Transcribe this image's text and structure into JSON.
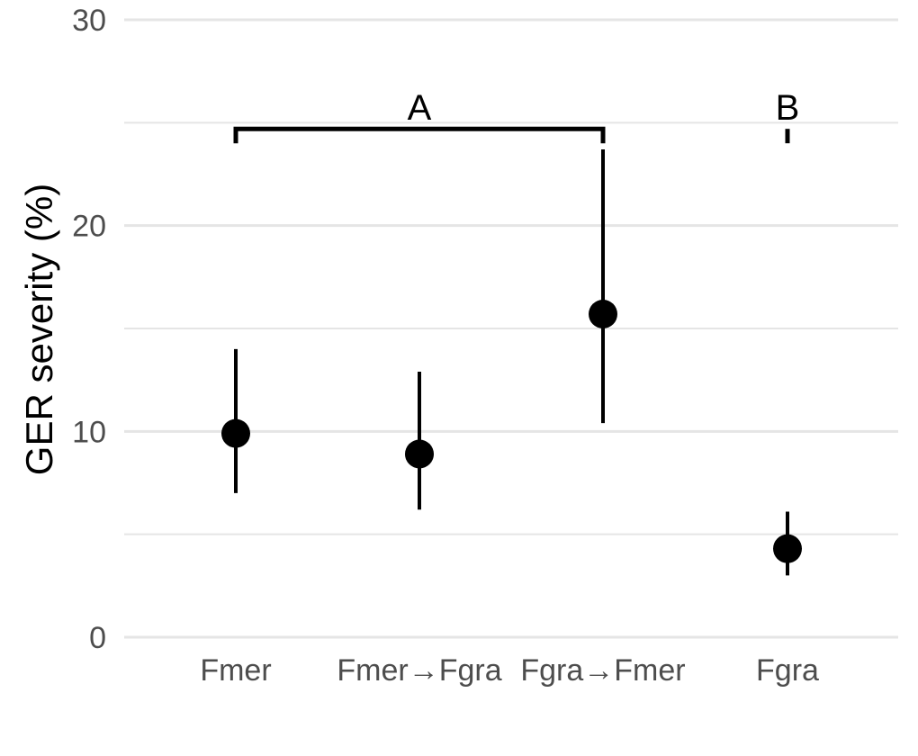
{
  "chart_data": {
    "type": "scatter",
    "title": "",
    "xlabel": "",
    "ylabel": "GER severity (%)",
    "ylim": [
      0,
      30
    ],
    "yticks": [
      0,
      10,
      20,
      30
    ],
    "grid": true,
    "categories": [
      "Fmer",
      "Fmer→Fgra",
      "Fgra→Fmer",
      "Fgra"
    ],
    "series": [
      {
        "values": [
          9.9,
          8.9,
          15.7,
          4.3
        ],
        "error_low": [
          7.0,
          6.2,
          10.4,
          3.0
        ],
        "error_high": [
          14.0,
          12.9,
          23.7,
          6.1
        ]
      }
    ],
    "significance_groups": [
      {
        "label": "A",
        "from_category": 0,
        "to_category": 2,
        "y": 24.7
      },
      {
        "label": "B",
        "from_category": 3,
        "to_category": 3,
        "y": 24.7
      }
    ],
    "colors": {
      "points": "#000000",
      "grid": "#e5e5e5",
      "tick_text": "#4d4d4d"
    }
  }
}
